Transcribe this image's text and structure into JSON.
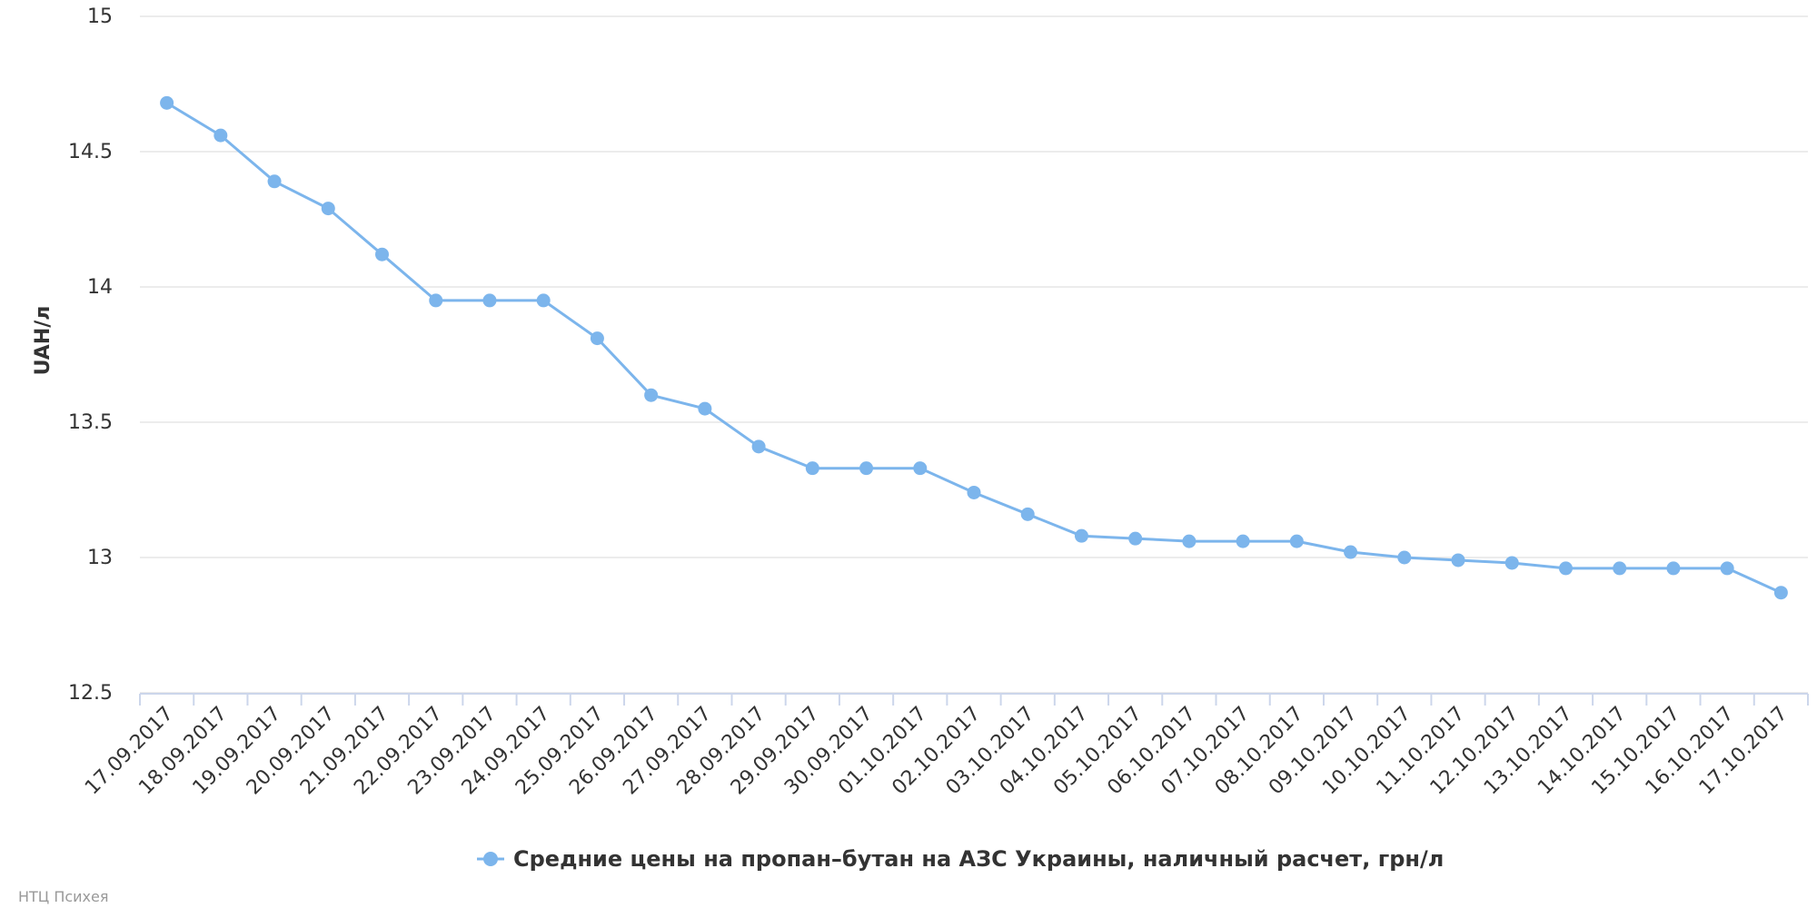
{
  "chart_data": {
    "type": "line",
    "title": "",
    "xlabel": "",
    "ylabel": "UAH/л",
    "ylim": [
      12.5,
      15
    ],
    "yticks": [
      "15",
      "14.5",
      "14",
      "13.5",
      "13",
      "12.5"
    ],
    "grid": true,
    "legend_position": "bottom-center",
    "categories": [
      "17.09.2017",
      "18.09.2017",
      "19.09.2017",
      "20.09.2017",
      "21.09.2017",
      "22.09.2017",
      "23.09.2017",
      "24.09.2017",
      "25.09.2017",
      "26.09.2017",
      "27.09.2017",
      "28.09.2017",
      "29.09.2017",
      "30.09.2017",
      "01.10.2017",
      "02.10.2017",
      "03.10.2017",
      "04.10.2017",
      "05.10.2017",
      "06.10.2017",
      "07.10.2017",
      "08.10.2017",
      "09.10.2017",
      "10.10.2017",
      "11.10.2017",
      "12.10.2017",
      "13.10.2017",
      "14.10.2017",
      "15.10.2017",
      "16.10.2017",
      "17.10.2017"
    ],
    "series": [
      {
        "name": "Средние цены на пропан–бутан на АЗС Украины, наличный расчет, грн/л",
        "color": "#7cb5ec",
        "values": [
          14.68,
          14.56,
          14.39,
          14.29,
          14.12,
          13.95,
          13.95,
          13.95,
          13.81,
          13.6,
          13.55,
          13.41,
          13.33,
          13.33,
          13.33,
          13.24,
          13.16,
          13.08,
          13.07,
          13.06,
          13.06,
          13.06,
          13.02,
          13.0,
          12.99,
          12.98,
          12.96,
          12.96,
          12.96,
          12.96,
          12.87
        ]
      }
    ]
  },
  "credits": "НТЦ Психея"
}
